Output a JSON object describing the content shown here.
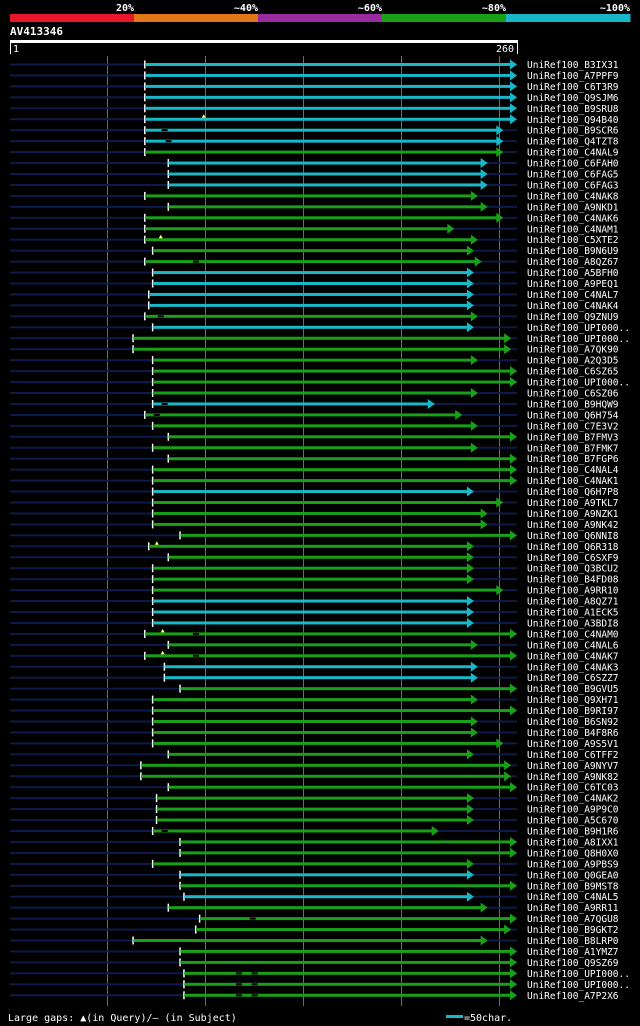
{
  "header": {
    "identity_ticks": [
      "20%",
      "~40%",
      "~60%",
      "~80%",
      "~100%"
    ],
    "identity_colors": [
      "#e8182a",
      "#e07818",
      "#9a2aa0",
      "#18a018",
      "#18b8c8"
    ],
    "query_name": "AV413346",
    "ruler_start": "1",
    "ruler_end": "260"
  },
  "chart_data": {
    "type": "alignment-overview",
    "query_length": 260,
    "colors": {
      "dark": "#0e1a4a",
      "green": "#18a018",
      "cyan": "#18b8c8"
    },
    "hits": [
      {
        "name": "UniRef100_B3IX31",
        "qs": 70,
        "qe": 260,
        "c": "cyan",
        "mk": []
      },
      {
        "name": "UniRef100_A7PPF9",
        "qs": 70,
        "qe": 260,
        "c": "cyan",
        "mk": []
      },
      {
        "name": "UniRef100_C6T3R9",
        "qs": 70,
        "qe": 260,
        "c": "cyan",
        "mk": []
      },
      {
        "name": "UniRef100_Q9SJM6",
        "qs": 70,
        "qe": 260,
        "c": "cyan",
        "mk": []
      },
      {
        "name": "UniRef100_B9SRU8",
        "qs": 70,
        "qe": 260,
        "c": "cyan",
        "mk": []
      },
      {
        "name": "UniRef100_Q94B40",
        "qs": 70,
        "qe": 260,
        "c": "cyan",
        "mk": [
          {
            "p": 100,
            "t": "q"
          }
        ]
      },
      {
        "name": "UniRef100_B9SCR6",
        "qs": 70,
        "qe": 253,
        "c": "cyan",
        "mk": [
          {
            "p": 80,
            "t": "s"
          }
        ]
      },
      {
        "name": "UniRef100_Q4TZT8",
        "qs": 70,
        "qe": 253,
        "c": "cyan",
        "mk": [
          {
            "p": 82,
            "t": "s"
          }
        ]
      },
      {
        "name": "UniRef100_C4NAL9",
        "qs": 70,
        "qe": 253,
        "c": "green",
        "mk": []
      },
      {
        "name": "UniRef100_C6FAH0",
        "qs": 82,
        "qe": 245,
        "c": "cyan",
        "mk": []
      },
      {
        "name": "UniRef100_C6FAG5",
        "qs": 82,
        "qe": 245,
        "c": "cyan",
        "mk": []
      },
      {
        "name": "UniRef100_C6FAG3",
        "qs": 82,
        "qe": 245,
        "c": "cyan",
        "mk": []
      },
      {
        "name": "UniRef100_C4NAK8",
        "qs": 70,
        "qe": 240,
        "c": "green",
        "mk": []
      },
      {
        "name": "UniRef100_A9NKD1",
        "qs": 82,
        "qe": 245,
        "c": "green",
        "mk": []
      },
      {
        "name": "UniRef100_C4NAK6",
        "qs": 70,
        "qe": 253,
        "c": "green",
        "mk": []
      },
      {
        "name": "UniRef100_C4NAM1",
        "qs": 70,
        "qe": 228,
        "c": "green",
        "mk": []
      },
      {
        "name": "UniRef100_C5XTE2",
        "qs": 70,
        "qe": 240,
        "c": "green",
        "mk": [
          {
            "p": 78,
            "t": "q"
          }
        ]
      },
      {
        "name": "UniRef100_B9N6U9",
        "qs": 74,
        "qe": 238,
        "c": "green",
        "mk": []
      },
      {
        "name": "UniRef100_A8QZ67",
        "qs": 70,
        "qe": 242,
        "c": "green",
        "mk": [
          {
            "p": 96,
            "t": "s"
          }
        ]
      },
      {
        "name": "UniRef100_A5BFH0",
        "qs": 74,
        "qe": 238,
        "c": "cyan",
        "mk": []
      },
      {
        "name": "UniRef100_A9PEQ1",
        "qs": 74,
        "qe": 238,
        "c": "cyan",
        "mk": []
      },
      {
        "name": "UniRef100_C4NAL7",
        "qs": 72,
        "qe": 238,
        "c": "cyan",
        "mk": []
      },
      {
        "name": "UniRef100_C4NAK4",
        "qs": 72,
        "qe": 238,
        "c": "cyan",
        "mk": []
      },
      {
        "name": "UniRef100_Q9ZNU9",
        "qs": 70,
        "qe": 240,
        "c": "green",
        "mk": [
          {
            "p": 78,
            "t": "s"
          }
        ]
      },
      {
        "name": "UniRef100_UPI000..",
        "qs": 74,
        "qe": 238,
        "c": "cyan",
        "mk": []
      },
      {
        "name": "UniRef100_UPI000..",
        "qs": 64,
        "qe": 257,
        "c": "green",
        "mk": []
      },
      {
        "name": "UniRef100_A7QK90",
        "qs": 64,
        "qe": 257,
        "c": "green",
        "mk": []
      },
      {
        "name": "UniRef100_A2Q3D5",
        "qs": 74,
        "qe": 240,
        "c": "green",
        "mk": []
      },
      {
        "name": "UniRef100_C6SZ65",
        "qs": 74,
        "qe": 260,
        "c": "green",
        "mk": []
      },
      {
        "name": "UniRef100_UPI000..",
        "qs": 74,
        "qe": 260,
        "c": "green",
        "mk": []
      },
      {
        "name": "UniRef100_C6SZ06",
        "qs": 74,
        "qe": 240,
        "c": "green",
        "mk": []
      },
      {
        "name": "UniRef100_B9HQW9",
        "qs": 74,
        "qe": 218,
        "c": "cyan",
        "mk": [
          {
            "p": 80,
            "t": "s"
          }
        ]
      },
      {
        "name": "UniRef100_Q6H754",
        "qs": 70,
        "qe": 232,
        "c": "green",
        "mk": [
          {
            "p": 76,
            "t": "s"
          }
        ]
      },
      {
        "name": "UniRef100_C7E3V2",
        "qs": 74,
        "qe": 240,
        "c": "green",
        "mk": []
      },
      {
        "name": "UniRef100_B7FMV3",
        "qs": 82,
        "qe": 260,
        "c": "green",
        "mk": []
      },
      {
        "name": "UniRef100_B7FMK7",
        "qs": 74,
        "qe": 240,
        "c": "green",
        "mk": []
      },
      {
        "name": "UniRef100_B7FGP6",
        "qs": 82,
        "qe": 260,
        "c": "green",
        "mk": []
      },
      {
        "name": "UniRef100_C4NAL4",
        "qs": 74,
        "qe": 260,
        "c": "green",
        "mk": []
      },
      {
        "name": "UniRef100_C4NAK1",
        "qs": 74,
        "qe": 260,
        "c": "green",
        "mk": []
      },
      {
        "name": "UniRef100_Q6H7P8",
        "qs": 74,
        "qe": 238,
        "c": "cyan",
        "mk": []
      },
      {
        "name": "UniRef100_A9TKL7",
        "qs": 74,
        "qe": 253,
        "c": "green",
        "mk": []
      },
      {
        "name": "UniRef100_A9NZK1",
        "qs": 74,
        "qe": 245,
        "c": "green",
        "mk": []
      },
      {
        "name": "UniRef100_A9NK42",
        "qs": 74,
        "qe": 245,
        "c": "green",
        "mk": []
      },
      {
        "name": "UniRef100_Q6NNI8",
        "qs": 88,
        "qe": 260,
        "c": "green",
        "mk": []
      },
      {
        "name": "UniRef100_Q6R318",
        "qs": 72,
        "qe": 238,
        "c": "green",
        "mk": [
          {
            "p": 76,
            "t": "q"
          }
        ]
      },
      {
        "name": "UniRef100_C6SXF9",
        "qs": 82,
        "qe": 238,
        "c": "green",
        "mk": []
      },
      {
        "name": "UniRef100_Q3BCU2",
        "qs": 74,
        "qe": 238,
        "c": "green",
        "mk": []
      },
      {
        "name": "UniRef100_B4FD08",
        "qs": 74,
        "qe": 238,
        "c": "green",
        "mk": []
      },
      {
        "name": "UniRef100_A9RR10",
        "qs": 74,
        "qe": 253,
        "c": "green",
        "mk": []
      },
      {
        "name": "UniRef100_A8QZ71",
        "qs": 74,
        "qe": 238,
        "c": "cyan",
        "mk": []
      },
      {
        "name": "UniRef100_A1ECK5",
        "qs": 74,
        "qe": 238,
        "c": "cyan",
        "mk": []
      },
      {
        "name": "UniRef100_A3BDI8",
        "qs": 74,
        "qe": 238,
        "c": "cyan",
        "mk": []
      },
      {
        "name": "UniRef100_C4NAM0",
        "qs": 70,
        "qe": 260,
        "c": "green",
        "mk": [
          {
            "p": 79,
            "t": "q"
          },
          {
            "p": 96,
            "t": "s"
          }
        ]
      },
      {
        "name": "UniRef100_C4NAL6",
        "qs": 82,
        "qe": 240,
        "c": "green",
        "mk": []
      },
      {
        "name": "UniRef100_C4NAK7",
        "qs": 70,
        "qe": 260,
        "c": "green",
        "mk": [
          {
            "p": 79,
            "t": "q"
          },
          {
            "p": 96,
            "t": "s"
          }
        ]
      },
      {
        "name": "UniRef100_C4NAK3",
        "qs": 80,
        "qe": 240,
        "c": "cyan",
        "mk": []
      },
      {
        "name": "UniRef100_C6SZZ7",
        "qs": 80,
        "qe": 240,
        "c": "cyan",
        "mk": []
      },
      {
        "name": "UniRef100_B9GVU5",
        "qs": 88,
        "qe": 260,
        "c": "green",
        "mk": []
      },
      {
        "name": "UniRef100_Q9XH71",
        "qs": 74,
        "qe": 240,
        "c": "green",
        "mk": []
      },
      {
        "name": "UniRef100_B9RI97",
        "qs": 74,
        "qe": 260,
        "c": "green",
        "mk": []
      },
      {
        "name": "UniRef100_B6SN92",
        "qs": 74,
        "qe": 240,
        "c": "green",
        "mk": []
      },
      {
        "name": "UniRef100_B4F8R6",
        "qs": 74,
        "qe": 240,
        "c": "green",
        "mk": []
      },
      {
        "name": "UniRef100_A9S5V1",
        "qs": 74,
        "qe": 253,
        "c": "green",
        "mk": []
      },
      {
        "name": "UniRef100_C6TFF2",
        "qs": 82,
        "qe": 238,
        "c": "green",
        "mk": []
      },
      {
        "name": "UniRef100_A9NYV7",
        "qs": 68,
        "qe": 257,
        "c": "green",
        "mk": []
      },
      {
        "name": "UniRef100_A9NK82",
        "qs": 68,
        "qe": 257,
        "c": "green",
        "mk": []
      },
      {
        "name": "UniRef100_C6TC03",
        "qs": 82,
        "qe": 260,
        "c": "green",
        "mk": []
      },
      {
        "name": "UniRef100_C4NAK2",
        "qs": 76,
        "qe": 238,
        "c": "green",
        "mk": []
      },
      {
        "name": "UniRef100_A9P9C0",
        "qs": 76,
        "qe": 238,
        "c": "green",
        "mk": []
      },
      {
        "name": "UniRef100_A5C670",
        "qs": 76,
        "qe": 238,
        "c": "green",
        "mk": []
      },
      {
        "name": "UniRef100_B9H1R6",
        "qs": 74,
        "qe": 220,
        "c": "green",
        "mk": [
          {
            "p": 80,
            "t": "s"
          }
        ]
      },
      {
        "name": "UniRef100_A8IXX1",
        "qs": 88,
        "qe": 260,
        "c": "green",
        "mk": []
      },
      {
        "name": "UniRef100_Q8H0X0",
        "qs": 88,
        "qe": 260,
        "c": "green",
        "mk": []
      },
      {
        "name": "UniRef100_A9PBS9",
        "qs": 74,
        "qe": 238,
        "c": "green",
        "mk": []
      },
      {
        "name": "UniRef100_Q0GEA0",
        "qs": 88,
        "qe": 238,
        "c": "cyan",
        "mk": []
      },
      {
        "name": "UniRef100_B9MST8",
        "qs": 88,
        "qe": 260,
        "c": "green",
        "mk": []
      },
      {
        "name": "UniRef100_C4NAL5",
        "qs": 90,
        "qe": 238,
        "c": "cyan",
        "mk": []
      },
      {
        "name": "UniRef100_A9RR11",
        "qs": 82,
        "qe": 245,
        "c": "green",
        "mk": []
      },
      {
        "name": "UniRef100_A7QGU8",
        "qs": 98,
        "qe": 260,
        "c": "green",
        "mk": [
          {
            "p": 125,
            "t": "s"
          }
        ]
      },
      {
        "name": "UniRef100_B9GKT2",
        "qs": 96,
        "qe": 257,
        "c": "green",
        "mk": []
      },
      {
        "name": "UniRef100_B8LRP0",
        "qs": 64,
        "qe": 245,
        "c": "green",
        "mk": []
      },
      {
        "name": "UniRef100_A1YMZ7",
        "qs": 88,
        "qe": 260,
        "c": "green",
        "mk": []
      },
      {
        "name": "UniRef100_Q9SZ69",
        "qs": 88,
        "qe": 260,
        "c": "green",
        "mk": []
      },
      {
        "name": "UniRef100_UPI000..",
        "qs": 90,
        "qe": 260,
        "c": "green",
        "mk": [
          {
            "p": 118,
            "t": "s"
          },
          {
            "p": 126,
            "t": "s"
          }
        ]
      },
      {
        "name": "UniRef100_UPI000..",
        "qs": 90,
        "qe": 260,
        "c": "green",
        "mk": [
          {
            "p": 118,
            "t": "s"
          },
          {
            "p": 126,
            "t": "s"
          }
        ]
      },
      {
        "name": "UniRef100_A7P2X6",
        "qs": 90,
        "qe": 260,
        "c": "green",
        "mk": [
          {
            "p": 118,
            "t": "s"
          },
          {
            "p": 126,
            "t": "s"
          }
        ]
      }
    ]
  },
  "footer": {
    "gaps_legend": "Large gaps: ▲(in Query)/– (in Subject)",
    "scale_legend": "=50char."
  }
}
